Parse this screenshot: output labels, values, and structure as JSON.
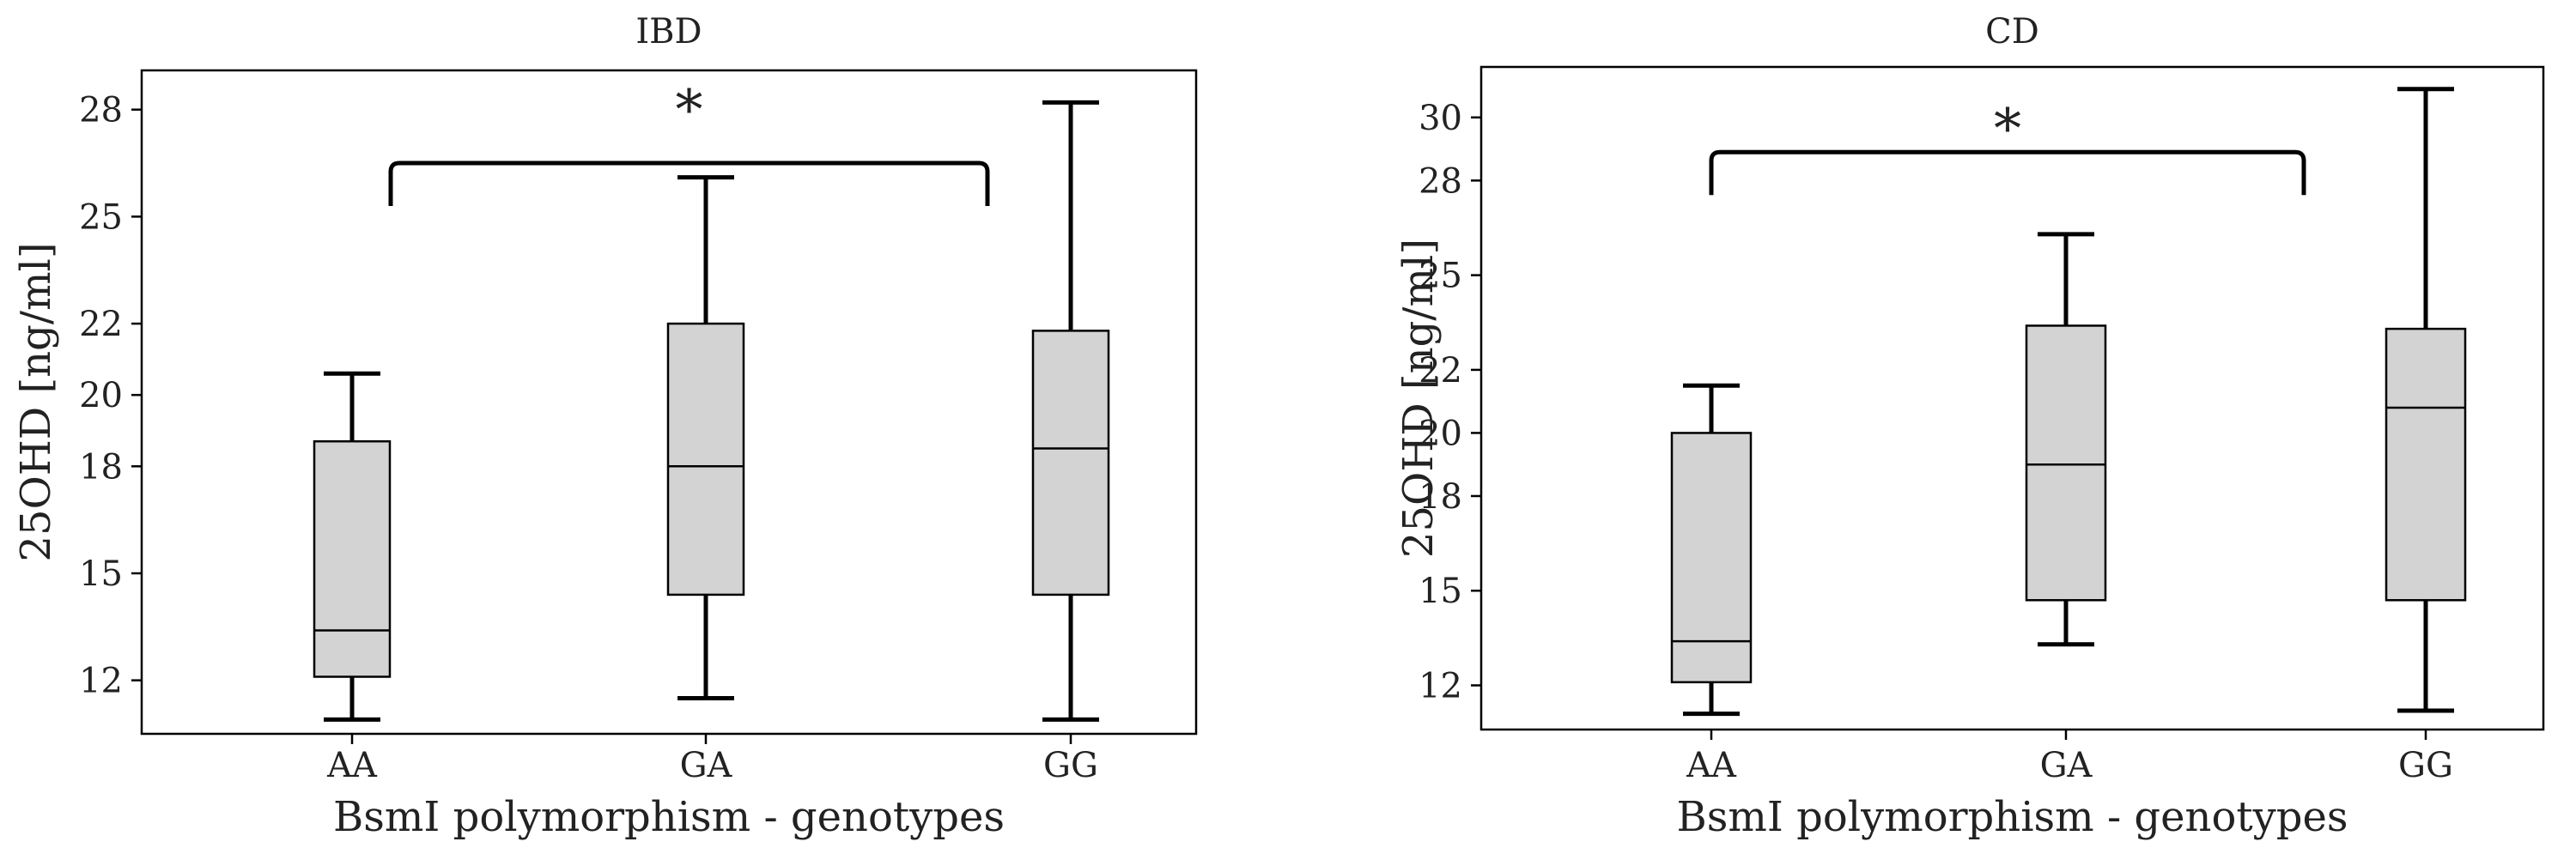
{
  "colors": {
    "box_fill": "#d3d3d3",
    "stroke": "#000000",
    "background": "#ffffff",
    "text": "#222222"
  },
  "chart_data": [
    {
      "type": "box",
      "title": "IBD",
      "xlabel": "BsmI polymorphism - genotypes",
      "ylabel": "25OHD [ng/ml]",
      "categories": [
        "AA",
        "GA",
        "GG"
      ],
      "ylim": [
        10.5,
        29.1
      ],
      "yticks": [
        12,
        15,
        18,
        20,
        22,
        25,
        28
      ],
      "ytick_labels": [
        "12",
        "15",
        "18",
        "20",
        "22",
        "25",
        "28"
      ],
      "boxes": [
        {
          "category": "AA",
          "whisker_low": 10.9,
          "q1": 12.1,
          "median": 13.4,
          "q3": 18.7,
          "whisker_high": 20.6
        },
        {
          "category": "GA",
          "whisker_low": 11.5,
          "q1": 14.4,
          "median": 18.0,
          "q3": 22.0,
          "whisker_high": 26.1
        },
        {
          "category": "GG",
          "whisker_low": 10.9,
          "q1": 14.4,
          "median": 18.5,
          "q3": 21.8,
          "whisker_high": 28.2
        }
      ],
      "significance": {
        "from": "AA",
        "to": "GG",
        "label": "*",
        "level": 26.5
      }
    },
    {
      "type": "box",
      "title": "CD",
      "xlabel": "BsmI polymorphism - genotypes",
      "ylabel": "25OHD [ng/ml]",
      "categories": [
        "AA",
        "GA",
        "GG"
      ],
      "ylim": [
        10.6,
        31.6
      ],
      "yticks": [
        12,
        15,
        18,
        20,
        22,
        25,
        28,
        30
      ],
      "ytick_labels": [
        "12",
        "15",
        "18",
        "20",
        "22",
        "25",
        "28",
        "30"
      ],
      "boxes": [
        {
          "category": "AA",
          "whisker_low": 11.1,
          "q1": 12.1,
          "median": 13.4,
          "q3": 20.0,
          "whisker_high": 21.5
        },
        {
          "category": "GA",
          "whisker_low": 13.3,
          "q1": 14.7,
          "median": 19.0,
          "q3": 23.4,
          "whisker_high": 26.3
        },
        {
          "category": "GG",
          "whisker_low": 11.2,
          "q1": 14.7,
          "median": 20.8,
          "q3": 23.3,
          "whisker_high": 30.9
        }
      ],
      "significance": {
        "from": "AA",
        "to": "GG",
        "label": "*",
        "level": 28.9
      }
    }
  ]
}
